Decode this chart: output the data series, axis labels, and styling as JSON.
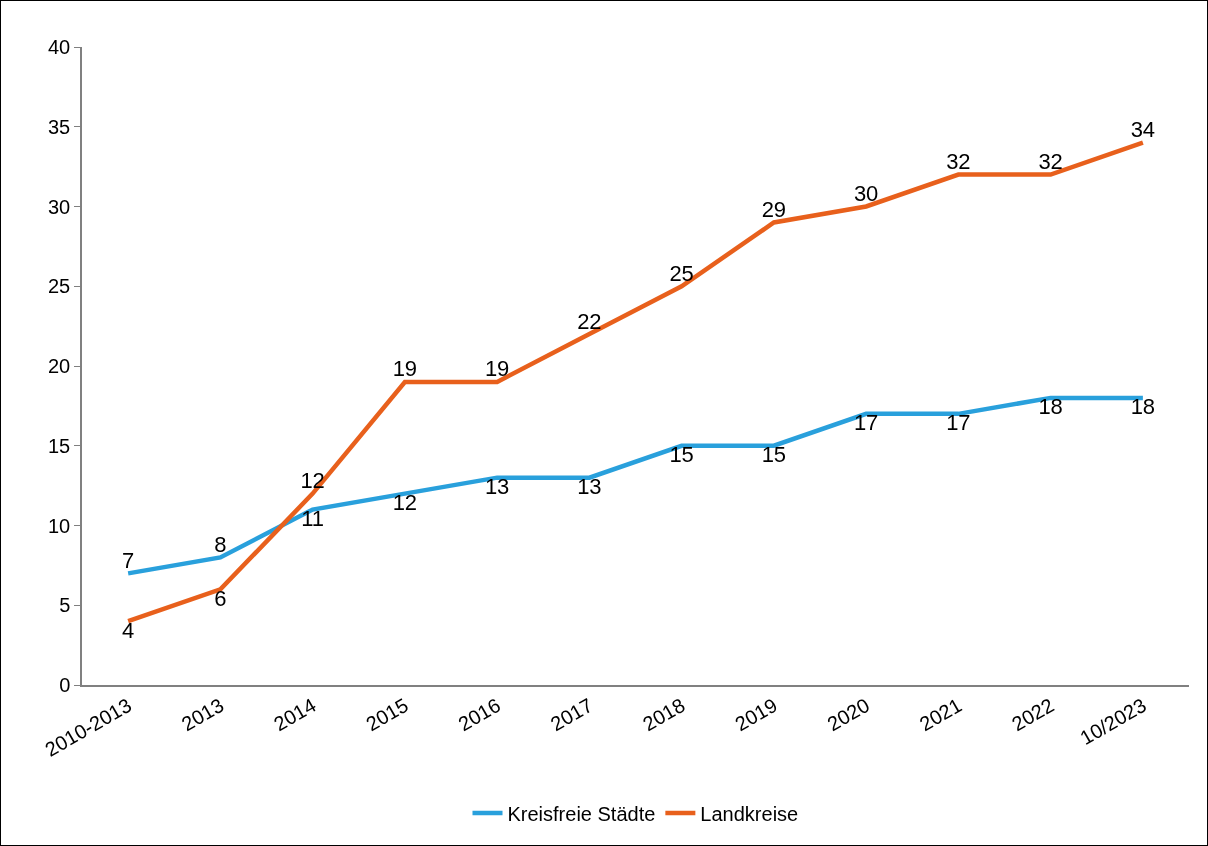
{
  "chart_data": {
    "type": "line",
    "categories": [
      "2010-2013",
      "2013",
      "2014",
      "2015",
      "2016",
      "2017",
      "2018",
      "2019",
      "2020",
      "2021",
      "2022",
      "10/2023"
    ],
    "series": [
      {
        "name": "Kreisfreie Städte",
        "color": "#29a0dc",
        "values": [
          7,
          8,
          11,
          12,
          13,
          13,
          15,
          15,
          17,
          17,
          18,
          18
        ]
      },
      {
        "name": "Landkreise",
        "color": "#e8601c",
        "values": [
          4,
          6,
          12,
          19,
          19,
          22,
          25,
          29,
          30,
          32,
          32,
          34
        ]
      }
    ],
    "ylim": [
      0,
      40
    ],
    "yticks": [
      0,
      5,
      10,
      15,
      20,
      25,
      30,
      35,
      40
    ],
    "grid": false,
    "legend": "bottom",
    "data_labels": true,
    "marker": "none",
    "line_style": "solid"
  }
}
